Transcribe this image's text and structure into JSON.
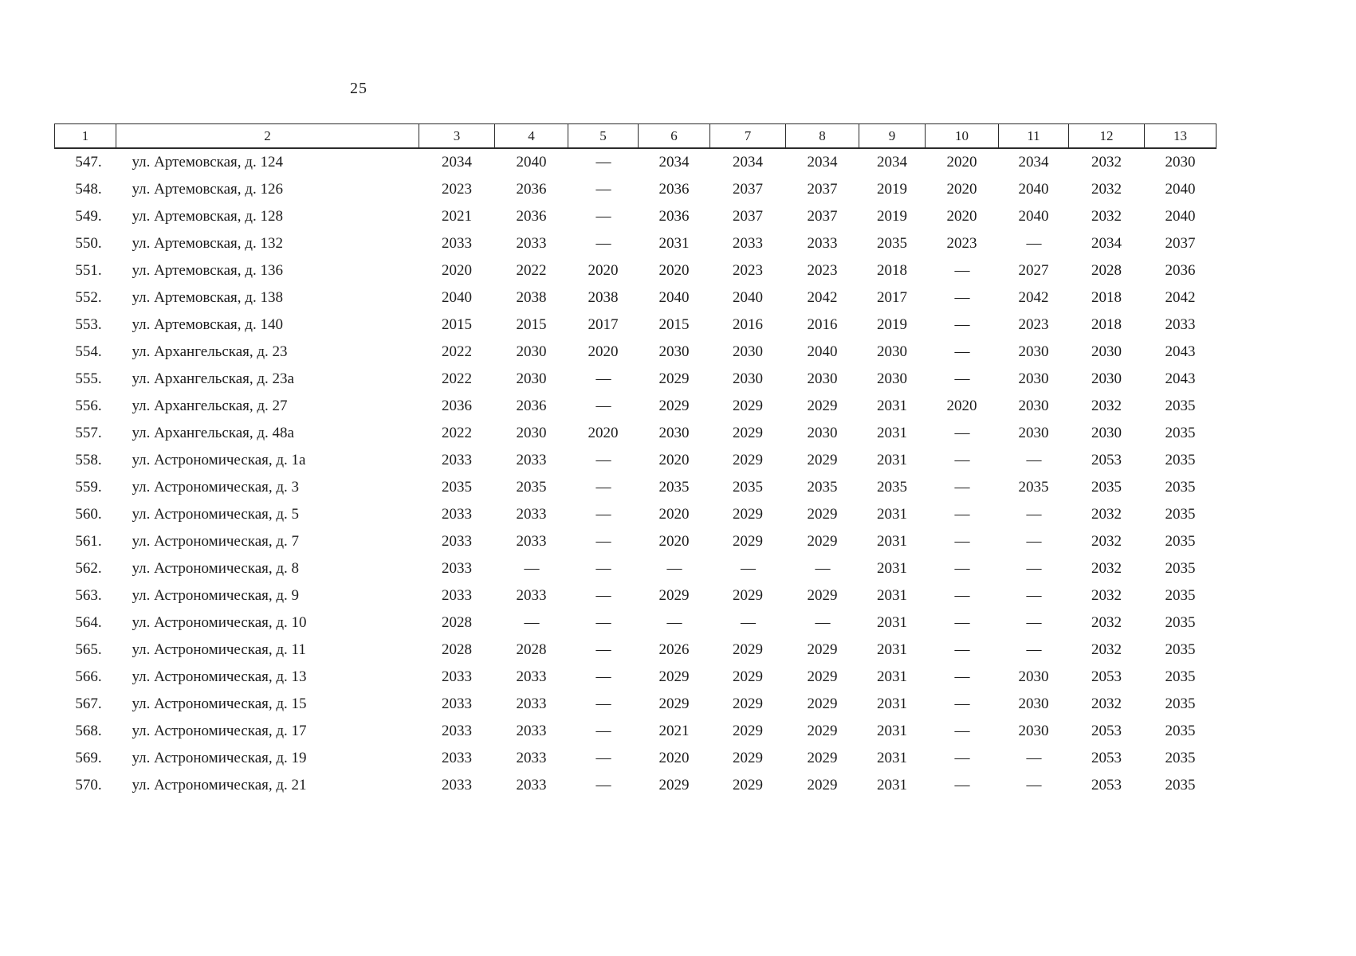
{
  "page": {
    "number": "25"
  },
  "table": {
    "headers": [
      "1",
      "2",
      "3",
      "4",
      "5",
      "6",
      "7",
      "8",
      "9",
      "10",
      "11",
      "12",
      "13"
    ],
    "rows": [
      {
        "num": "547.",
        "address": "ул. Артемовская, д. 124",
        "values": [
          "2034",
          "2040",
          "—",
          "2034",
          "2034",
          "2034",
          "2034",
          "2020",
          "2034",
          "2032",
          "2030"
        ]
      },
      {
        "num": "548.",
        "address": "ул. Артемовская, д. 126",
        "values": [
          "2023",
          "2036",
          "—",
          "2036",
          "2037",
          "2037",
          "2019",
          "2020",
          "2040",
          "2032",
          "2040"
        ]
      },
      {
        "num": "549.",
        "address": "ул. Артемовская, д. 128",
        "values": [
          "2021",
          "2036",
          "—",
          "2036",
          "2037",
          "2037",
          "2019",
          "2020",
          "2040",
          "2032",
          "2040"
        ]
      },
      {
        "num": "550.",
        "address": "ул. Артемовская, д. 132",
        "values": [
          "2033",
          "2033",
          "—",
          "2031",
          "2033",
          "2033",
          "2035",
          "2023",
          "—",
          "2034",
          "2037"
        ]
      },
      {
        "num": "551.",
        "address": "ул. Артемовская, д. 136",
        "values": [
          "2020",
          "2022",
          "2020",
          "2020",
          "2023",
          "2023",
          "2018",
          "—",
          "2027",
          "2028",
          "2036"
        ]
      },
      {
        "num": "552.",
        "address": "ул. Артемовская, д. 138",
        "values": [
          "2040",
          "2038",
          "2038",
          "2040",
          "2040",
          "2042",
          "2017",
          "—",
          "2042",
          "2018",
          "2042"
        ]
      },
      {
        "num": "553.",
        "address": "ул. Артемовская, д. 140",
        "values": [
          "2015",
          "2015",
          "2017",
          "2015",
          "2016",
          "2016",
          "2019",
          "—",
          "2023",
          "2018",
          "2033"
        ]
      },
      {
        "num": "554.",
        "address": "ул. Архангельская, д. 23",
        "values": [
          "2022",
          "2030",
          "2020",
          "2030",
          "2030",
          "2040",
          "2030",
          "—",
          "2030",
          "2030",
          "2043"
        ]
      },
      {
        "num": "555.",
        "address": "ул. Архангельская, д. 23а",
        "values": [
          "2022",
          "2030",
          "—",
          "2029",
          "2030",
          "2030",
          "2030",
          "—",
          "2030",
          "2030",
          "2043"
        ]
      },
      {
        "num": "556.",
        "address": "ул. Архангельская, д. 27",
        "values": [
          "2036",
          "2036",
          "—",
          "2029",
          "2029",
          "2029",
          "2031",
          "2020",
          "2030",
          "2032",
          "2035"
        ]
      },
      {
        "num": "557.",
        "address": "ул. Архангельская, д. 48а",
        "values": [
          "2022",
          "2030",
          "2020",
          "2030",
          "2029",
          "2030",
          "2031",
          "—",
          "2030",
          "2030",
          "2035"
        ]
      },
      {
        "num": "558.",
        "address": "ул. Астрономическая, д. 1а",
        "values": [
          "2033",
          "2033",
          "—",
          "2020",
          "2029",
          "2029",
          "2031",
          "—",
          "—",
          "2053",
          "2035"
        ]
      },
      {
        "num": "559.",
        "address": "ул. Астрономическая, д. 3",
        "values": [
          "2035",
          "2035",
          "—",
          "2035",
          "2035",
          "2035",
          "2035",
          "—",
          "2035",
          "2035",
          "2035"
        ]
      },
      {
        "num": "560.",
        "address": "ул. Астрономическая, д. 5",
        "values": [
          "2033",
          "2033",
          "—",
          "2020",
          "2029",
          "2029",
          "2031",
          "—",
          "—",
          "2032",
          "2035"
        ]
      },
      {
        "num": "561.",
        "address": "ул. Астрономическая, д. 7",
        "values": [
          "2033",
          "2033",
          "—",
          "2020",
          "2029",
          "2029",
          "2031",
          "—",
          "—",
          "2032",
          "2035"
        ]
      },
      {
        "num": "562.",
        "address": "ул. Астрономическая, д. 8",
        "values": [
          "2033",
          "—",
          "—",
          "—",
          "—",
          "—",
          "2031",
          "—",
          "—",
          "2032",
          "2035"
        ]
      },
      {
        "num": "563.",
        "address": "ул. Астрономическая, д. 9",
        "values": [
          "2033",
          "2033",
          "—",
          "2029",
          "2029",
          "2029",
          "2031",
          "—",
          "—",
          "2032",
          "2035"
        ]
      },
      {
        "num": "564.",
        "address": "ул. Астрономическая, д. 10",
        "values": [
          "2028",
          "—",
          "—",
          "—",
          "—",
          "—",
          "2031",
          "—",
          "—",
          "2032",
          "2035"
        ]
      },
      {
        "num": "565.",
        "address": "ул. Астрономическая, д. 11",
        "values": [
          "2028",
          "2028",
          "—",
          "2026",
          "2029",
          "2029",
          "2031",
          "—",
          "—",
          "2032",
          "2035"
        ]
      },
      {
        "num": "566.",
        "address": "ул. Астрономическая, д. 13",
        "values": [
          "2033",
          "2033",
          "—",
          "2029",
          "2029",
          "2029",
          "2031",
          "—",
          "2030",
          "2053",
          "2035"
        ]
      },
      {
        "num": "567.",
        "address": "ул. Астрономическая, д. 15",
        "values": [
          "2033",
          "2033",
          "—",
          "2029",
          "2029",
          "2029",
          "2031",
          "—",
          "2030",
          "2032",
          "2035"
        ]
      },
      {
        "num": "568.",
        "address": "ул. Астрономическая, д. 17",
        "values": [
          "2033",
          "2033",
          "—",
          "2021",
          "2029",
          "2029",
          "2031",
          "—",
          "2030",
          "2053",
          "2035"
        ]
      },
      {
        "num": "569.",
        "address": "ул. Астрономическая, д. 19",
        "values": [
          "2033",
          "2033",
          "—",
          "2020",
          "2029",
          "2029",
          "2031",
          "—",
          "—",
          "2053",
          "2035"
        ]
      },
      {
        "num": "570.",
        "address": "ул. Астрономическая, д. 21",
        "values": [
          "2033",
          "2033",
          "—",
          "2029",
          "2029",
          "2029",
          "2031",
          "—",
          "—",
          "2053",
          "2035"
        ]
      }
    ]
  }
}
